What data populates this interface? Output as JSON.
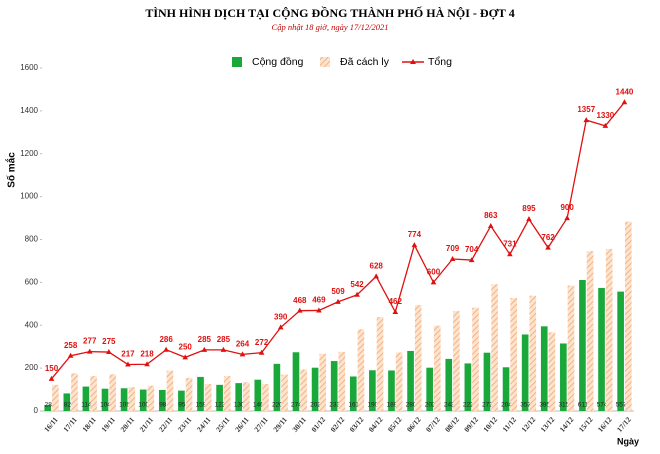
{
  "chart_data": {
    "type": "bar",
    "title": "TÌNH HÌNH DỊCH TẠI CỘNG ĐỒNG THÀNH PHỐ HÀ NỘI - ĐỢT 4",
    "subtitle": "Cập nhật 18 giờ, ngày 17/12/2021",
    "y_label": "Số mắc",
    "x_label": "Ngày",
    "categories": [
      "16/11",
      "17/11",
      "18/11",
      "19/11",
      "20/11",
      "21/11",
      "22/11",
      "23/11",
      "24/11",
      "25/11",
      "26/11",
      "27/11",
      "29/11",
      "30/11",
      "01/12",
      "02/12",
      "03/12",
      "04/12",
      "05/12",
      "06/12",
      "07/12",
      "08/12",
      "09/12",
      "10/12",
      "11/12",
      "12/12",
      "13/12",
      "14/12",
      "15/12",
      "16/12",
      "17/12"
    ],
    "series": [
      {
        "name": "Cộng đồng",
        "type": "bar",
        "color": "#1aa83a",
        "values": [
          28,
          82,
          114,
          104,
          106,
          100,
          98,
          95,
          159,
          122,
          130,
          146,
          220,
          274,
          202,
          233,
          161,
          190,
          189,
          280,
          202,
          243,
          222,
          272,
          204,
          357,
          395,
          315,
          611,
          574,
          557
        ]
      },
      {
        "name": "Đã cách ly",
        "type": "bar",
        "color": "#f4b183",
        "values": [
          122,
          176,
          163,
          171,
          111,
          118,
          188,
          155,
          126,
          163,
          134,
          126,
          170,
          194,
          267,
          276,
          381,
          438,
          273,
          494,
          398,
          466,
          482,
          591,
          527,
          538,
          367,
          585,
          746,
          756,
          883
        ]
      },
      {
        "name": "Tổng",
        "type": "line",
        "color": "#e01010",
        "values": [
          150,
          258,
          277,
          275,
          217,
          218,
          286,
          250,
          285,
          285,
          264,
          272,
          390,
          468,
          469,
          509,
          542,
          628,
          462,
          774,
          600,
          709,
          704,
          863,
          731,
          895,
          762,
          900,
          1357,
          1330,
          1440
        ]
      }
    ],
    "ylim": [
      0,
      1600
    ],
    "yticks": [
      0,
      200,
      400,
      600,
      800,
      1000,
      1200,
      1400,
      1600
    ],
    "grid": false
  }
}
